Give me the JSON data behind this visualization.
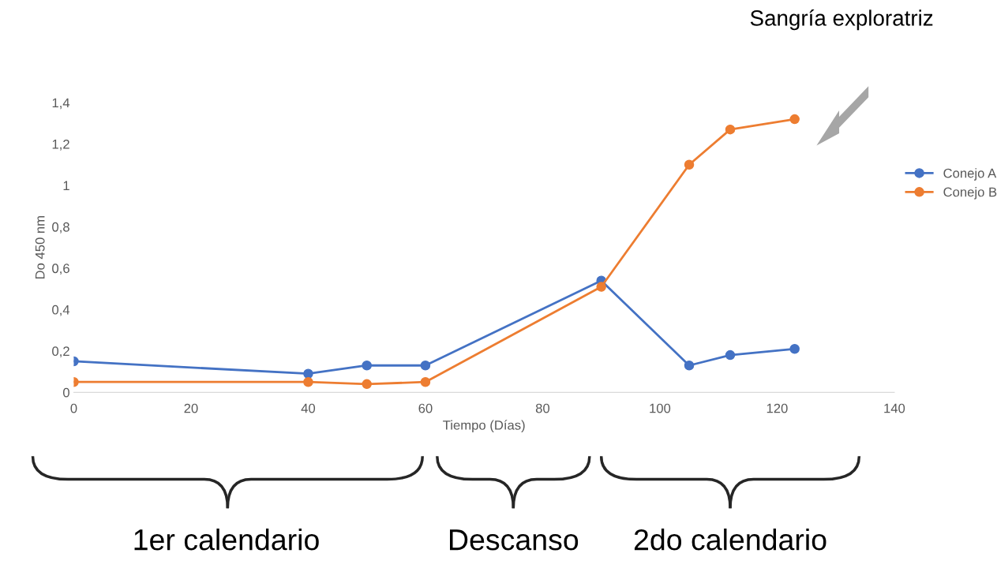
{
  "chart_data": {
    "type": "line",
    "xlabel": "Tiempo (Días)",
    "ylabel": "Do 450 nm",
    "xlim": [
      0,
      140
    ],
    "xticks": [
      0,
      20,
      40,
      60,
      80,
      100,
      120,
      140
    ],
    "ylim": [
      0,
      1.4
    ],
    "yticks": [
      0,
      {
        "value": 0.2,
        "label": "0,2"
      },
      {
        "value": 0.4,
        "label": "0,4"
      },
      {
        "value": 0.6,
        "label": "0,6"
      },
      {
        "value": 0.8,
        "label": "0,8"
      },
      1,
      {
        "value": 1.2,
        "label": "1,2"
      },
      {
        "value": 1.4,
        "label": "1,4"
      }
    ],
    "x": [
      0,
      40,
      50,
      60,
      90,
      105,
      112,
      123
    ],
    "series": [
      {
        "name": "Conejo A",
        "color": "#4472c4",
        "values": [
          0.15,
          0.09,
          0.13,
          0.13,
          0.54,
          0.13,
          0.18,
          0.21
        ]
      },
      {
        "name": "Conejo B",
        "color": "#ed7d31",
        "values": [
          0.05,
          0.05,
          0.04,
          0.05,
          0.51,
          1.1,
          1.27,
          1.32
        ]
      }
    ],
    "marker": "circle",
    "legend": "right",
    "grid": false,
    "annotations": [
      "Sangría exploratriz",
      "1er calendario",
      "Descanso",
      "2do calendario"
    ]
  }
}
